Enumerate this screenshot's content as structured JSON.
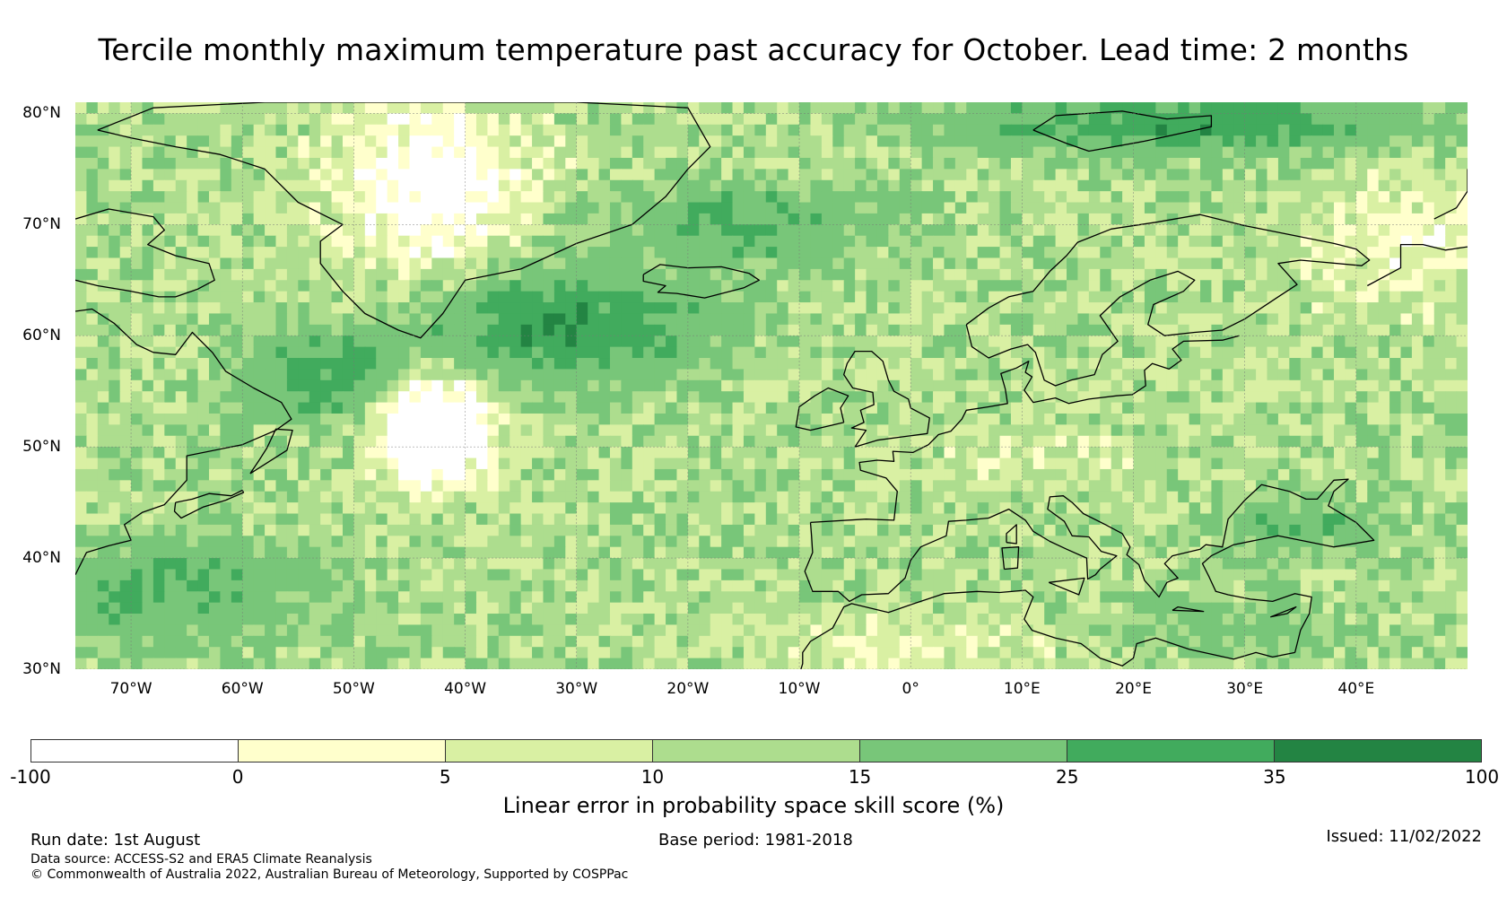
{
  "title": "Tercile monthly maximum temperature past accuracy for October. Lead time: 2 months",
  "map": {
    "lat_range": [
      30,
      81
    ],
    "lon_range": [
      -75,
      50
    ],
    "lat_ticks": [
      {
        "lat": 80,
        "label": "80°N"
      },
      {
        "lat": 70,
        "label": "70°N"
      },
      {
        "lat": 60,
        "label": "60°N"
      },
      {
        "lat": 50,
        "label": "50°N"
      },
      {
        "lat": 40,
        "label": "40°N"
      },
      {
        "lat": 30,
        "label": "30°N"
      }
    ],
    "lon_ticks": [
      {
        "lon": -70,
        "label": "70°W"
      },
      {
        "lon": -60,
        "label": "60°W"
      },
      {
        "lon": -50,
        "label": "50°W"
      },
      {
        "lon": -40,
        "label": "40°W"
      },
      {
        "lon": -30,
        "label": "30°W"
      },
      {
        "lon": -20,
        "label": "20°W"
      },
      {
        "lon": -10,
        "label": "10°W"
      },
      {
        "lon": 0,
        "label": "0°"
      },
      {
        "lon": 10,
        "label": "10°E"
      },
      {
        "lon": 20,
        "label": "20°E"
      },
      {
        "lon": 30,
        "label": "30°E"
      },
      {
        "lon": 40,
        "label": "40°E"
      }
    ],
    "coastline_color": "#000000",
    "gridline_color": "#777777"
  },
  "colorbar": {
    "colors": [
      "#ffffff",
      "#ffffcc",
      "#d9f0a3",
      "#addd8e",
      "#78c679",
      "#41ab5d",
      "#238443"
    ],
    "ticks": [
      "-100",
      "0",
      "5",
      "10",
      "15",
      "25",
      "35",
      "100"
    ],
    "label": "Linear error in probability space skill score (%)"
  },
  "footer": {
    "run_date": "Run date: 1st August",
    "base_period": "Base period: 1981-2018",
    "issued": "Issued: 11/02/2022",
    "data_source": "Data source: ACCESS-S2 and ERA5 Climate Reanalysis",
    "copyright": "© Commonwealth of Australia 2022, Australian Bureau of Meteorology, Supported by COSPPac"
  }
}
